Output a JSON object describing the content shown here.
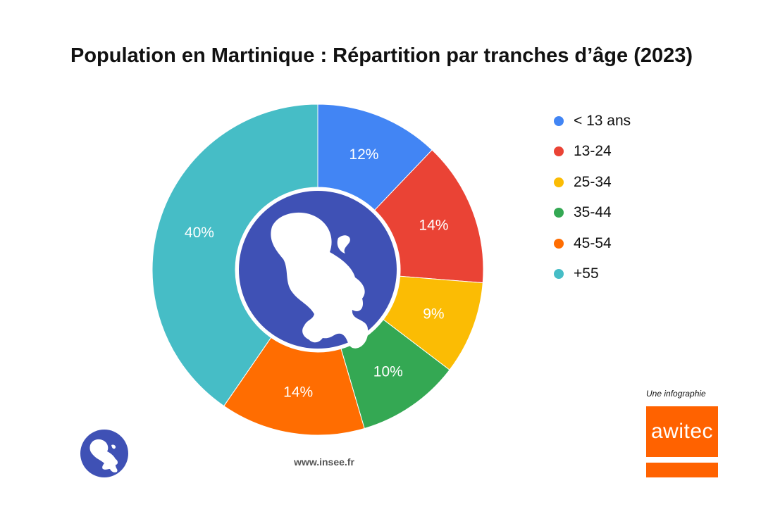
{
  "title": "Population en Martinique : Répartition par tranches d’âge (2023)",
  "chart_data": {
    "type": "pie",
    "title": "Population en Martinique : Répartition par tranches d’âge (2023)",
    "categories": [
      "< 13 ans",
      "13-24",
      "25-34",
      "35-44",
      "45-54",
      "+55"
    ],
    "values": [
      12,
      14,
      9,
      10,
      14,
      40
    ],
    "labels": [
      "12%",
      "14%",
      "9%",
      "10%",
      "14%",
      "40%"
    ],
    "colors": [
      "#4285f4",
      "#ea4335",
      "#fbbc04",
      "#34a853",
      "#ff6d01",
      "#46bdc6"
    ],
    "legend_position": "right",
    "donut": true
  },
  "center_icon": "martinique-island-icon",
  "credit": "Une infographie",
  "brand": {
    "name": "awitec",
    "color": "#ff6200"
  },
  "source": "www.insee.fr"
}
